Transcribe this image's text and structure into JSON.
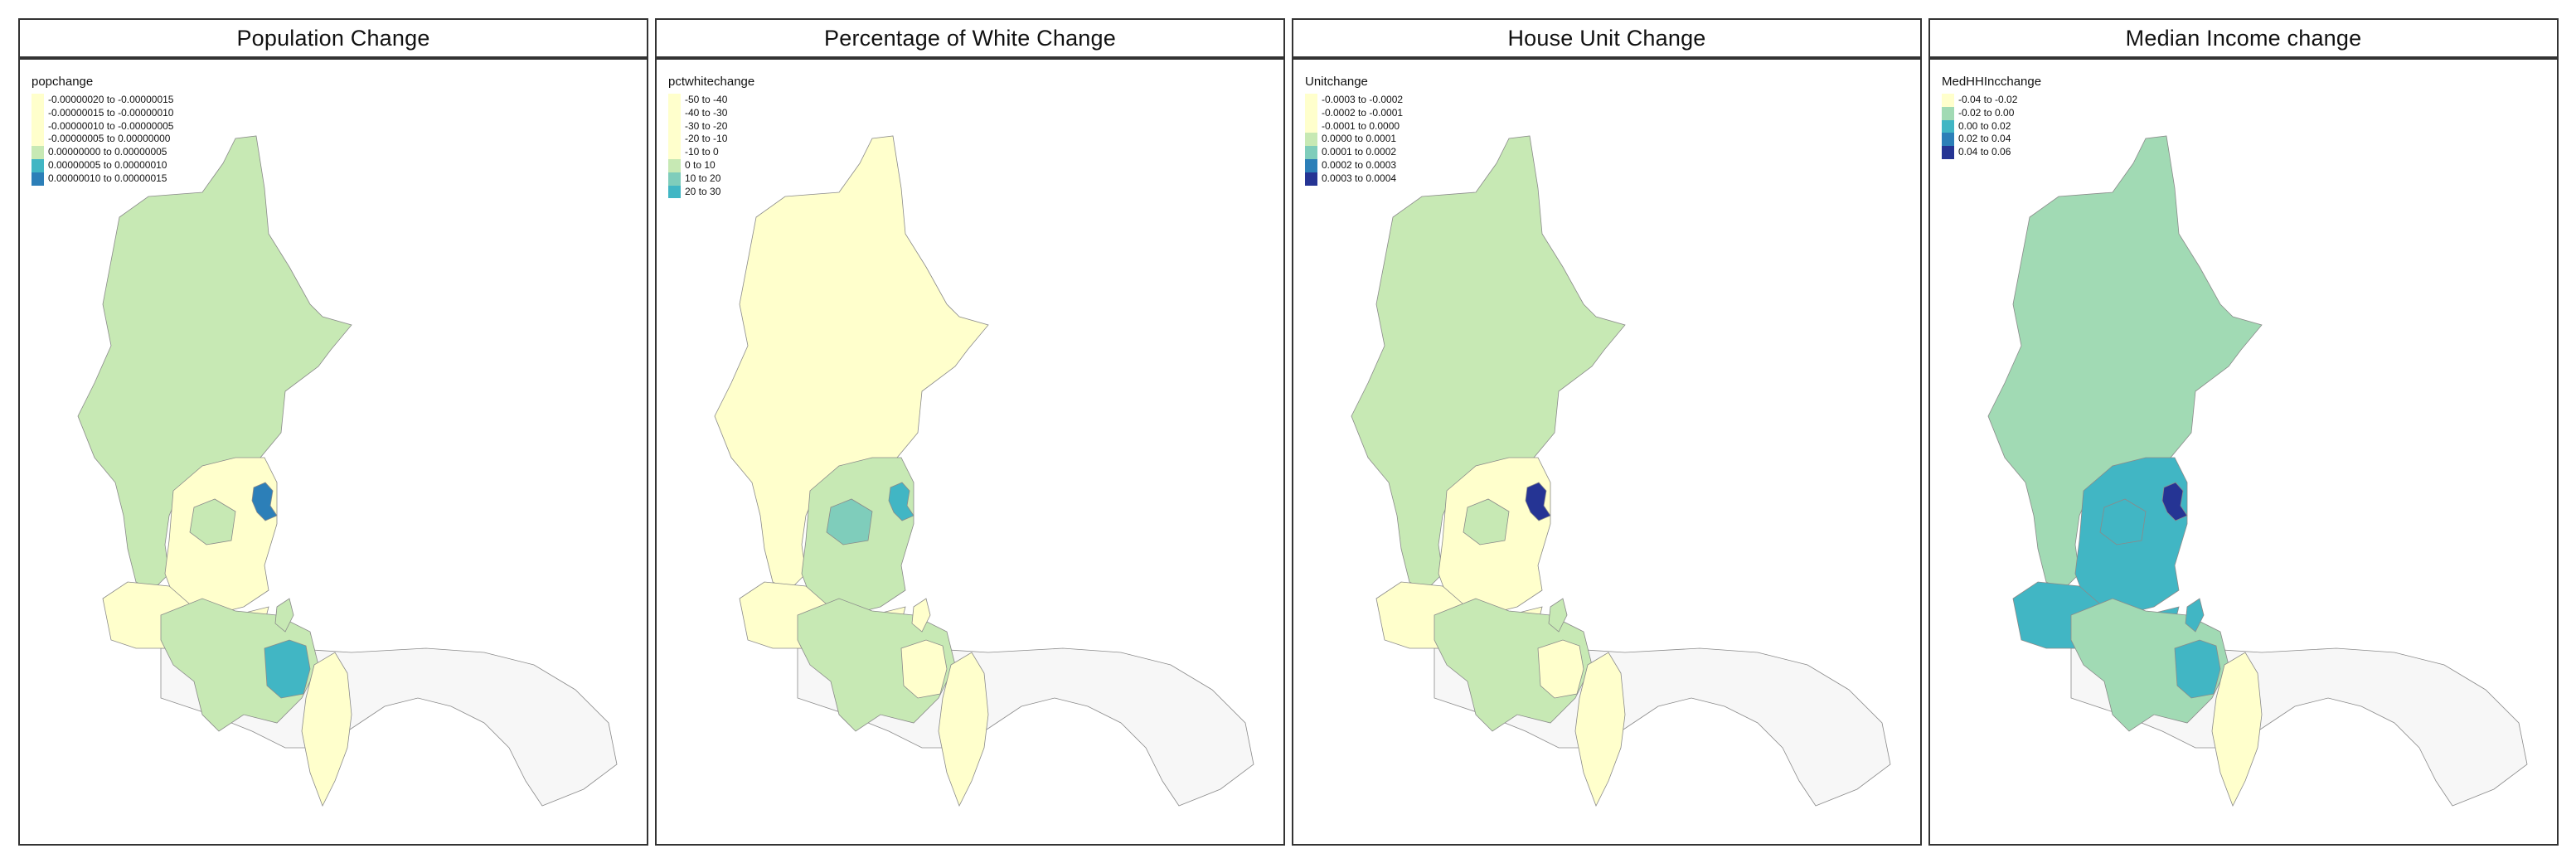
{
  "panels": [
    {
      "title": "Population Change",
      "legend_title": "popchange",
      "legend": [
        {
          "label": "-0.00000020 to -0.00000015",
          "color": "#ffffcc"
        },
        {
          "label": "-0.00000015 to -0.00000010",
          "color": "#ffffcc"
        },
        {
          "label": "-0.00000010 to -0.00000005",
          "color": "#ffffcc"
        },
        {
          "label": "-0.00000005 to 0.00000000",
          "color": "#ffffcc"
        },
        {
          "label": "0.00000000 to 0.00000005",
          "color": "#c7e9b4"
        },
        {
          "label": "0.00000005 to 0.00000010",
          "color": "#41b6c4"
        },
        {
          "label": "0.00000010 to 0.00000015",
          "color": "#2c7fb8"
        }
      ],
      "fills": {
        "main": "#c7e9b4",
        "middle": "#ffffcc",
        "inner": "#c7e9b4",
        "coastal": "#2c7fb8",
        "south": "#ffffcc",
        "southmid": "#c7e9b4",
        "southeast": "#41b6c4",
        "east": "#ffffcc",
        "easttip": "#c7e9b4",
        "nodata": "#f7f7f7"
      }
    },
    {
      "title": "Percentage of White Change",
      "legend_title": "pctwhitechange",
      "legend": [
        {
          "label": "-50 to -40",
          "color": "#ffffcc"
        },
        {
          "label": "-40 to -30",
          "color": "#ffffcc"
        },
        {
          "label": "-30 to -20",
          "color": "#ffffcc"
        },
        {
          "label": "-20 to -10",
          "color": "#ffffcc"
        },
        {
          "label": "-10 to 0",
          "color": "#ffffcc"
        },
        {
          "label": "0 to 10",
          "color": "#c7e9b4"
        },
        {
          "label": "10 to 20",
          "color": "#7fcdbb"
        },
        {
          "label": "20 to 30",
          "color": "#41b6c4"
        }
      ],
      "fills": {
        "main": "#ffffcc",
        "middle": "#c7e9b4",
        "inner": "#7fcdbb",
        "coastal": "#41b6c4",
        "south": "#ffffcc",
        "southmid": "#c7e9b4",
        "southeast": "#ffffcc",
        "east": "#ffffcc",
        "easttip": "#ffffcc",
        "nodata": "#f7f7f7"
      }
    },
    {
      "title": "House Unit Change",
      "legend_title": "Unitchange",
      "legend": [
        {
          "label": "-0.0003 to -0.0002",
          "color": "#ffffcc"
        },
        {
          "label": "-0.0002 to -0.0001",
          "color": "#ffffcc"
        },
        {
          "label": "-0.0001 to 0.0000",
          "color": "#ffffcc"
        },
        {
          "label": "0.0000 to 0.0001",
          "color": "#c7e9b4"
        },
        {
          "label": "0.0001 to 0.0002",
          "color": "#7fcdbb"
        },
        {
          "label": "0.0002 to 0.0003",
          "color": "#2c7fb8"
        },
        {
          "label": "0.0003 to 0.0004",
          "color": "#253494"
        }
      ],
      "fills": {
        "main": "#c7e9b4",
        "middle": "#ffffcc",
        "inner": "#c7e9b4",
        "coastal": "#253494",
        "south": "#ffffcc",
        "southmid": "#c7e9b4",
        "southeast": "#ffffcc",
        "east": "#ffffcc",
        "easttip": "#c7e9b4",
        "nodata": "#f7f7f7"
      }
    },
    {
      "title": "Median Income change",
      "legend_title": "MedHHIncchange",
      "legend": [
        {
          "label": "-0.04 to -0.02",
          "color": "#ffffcc"
        },
        {
          "label": "-0.02 to 0.00",
          "color": "#a1dab4"
        },
        {
          "label": "0.00 to 0.02",
          "color": "#41b6c4"
        },
        {
          "label": "0.02 to 0.04",
          "color": "#2c7fb8"
        },
        {
          "label": "0.04 to 0.06",
          "color": "#253494"
        }
      ],
      "fills": {
        "main": "#a1dab4",
        "middle": "#41b6c4",
        "inner": "#41b6c4",
        "coastal": "#253494",
        "south": "#41b6c4",
        "southmid": "#a1dab4",
        "southeast": "#41b6c4",
        "east": "#ffffcc",
        "easttip": "#41b6c4",
        "nodata": "#f7f7f7"
      }
    }
  ]
}
